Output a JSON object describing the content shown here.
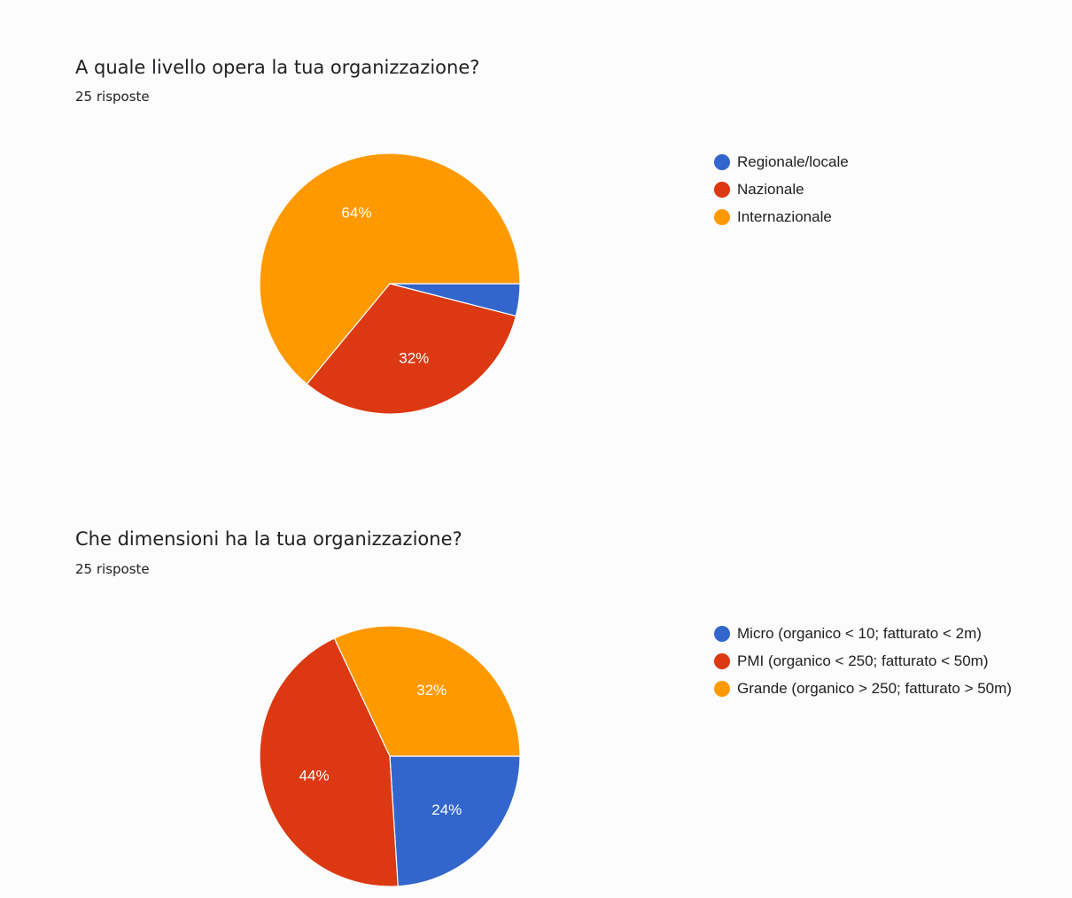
{
  "charts": [
    {
      "title": "A quale livello opera la tua organizzazione?",
      "responses": "25 risposte"
    },
    {
      "title": "Che dimensioni ha la tua organizzazione?",
      "responses": "25 risposte"
    }
  ],
  "colors": {
    "blue": "#3366cc",
    "red": "#dc3912",
    "orange": "#ff9900"
  },
  "chart_data": [
    {
      "type": "pie",
      "title": "A quale livello opera la tua organizzazione?",
      "labels": [
        "Regionale/locale",
        "Nazionale",
        "Internazionale"
      ],
      "values": [
        4,
        32,
        64
      ],
      "value_labels": [
        "",
        "32%",
        "64%"
      ],
      "colors": [
        "#3366cc",
        "#dc3912",
        "#ff9900"
      ],
      "legend": "right"
    },
    {
      "type": "pie",
      "title": "Che dimensioni ha la tua organizzazione?",
      "labels": [
        "Micro (organico < 10; fatturato < 2m)",
        "PMI (organico < 250; fatturato < 50m)",
        "Grande (organico > 250; fatturato > 50m)"
      ],
      "values": [
        24,
        44,
        32
      ],
      "value_labels": [
        "24%",
        "44%",
        "32%"
      ],
      "colors": [
        "#3366cc",
        "#dc3912",
        "#ff9900"
      ],
      "legend": "right"
    }
  ]
}
